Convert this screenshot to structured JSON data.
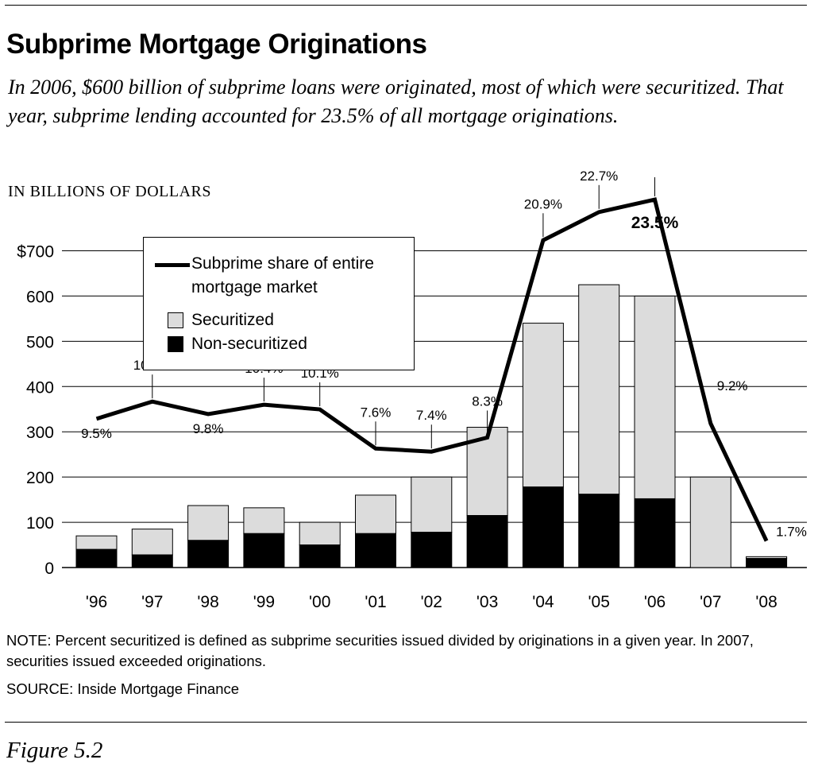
{
  "header": {
    "title": "Subprime Mortgage Originations",
    "subtitle": "In 2006, $600 billion of subprime loans were originated, most of which were securitized. That year, subprime lending accounted for 23.5% of all mortgage originations.",
    "units": "IN BILLIONS OF DOLLARS"
  },
  "chart_data": {
    "type": "bar",
    "stacked": true,
    "categories": [
      "'96",
      "'97",
      "'98",
      "'99",
      "'00",
      "'01",
      "'02",
      "'03",
      "'04",
      "'05",
      "'06",
      "'07",
      "'08"
    ],
    "y_ticks": [
      "$700",
      "600",
      "500",
      "400",
      "300",
      "200",
      "100",
      "0"
    ],
    "ylim": [
      0,
      700
    ],
    "grid": true,
    "legend_placement": "top-left",
    "series": [
      {
        "name": "Non-securitized",
        "kind": "bar",
        "color": "#000000",
        "values": [
          40,
          28,
          60,
          75,
          50,
          75,
          78,
          115,
          178,
          162,
          152,
          0,
          20
        ]
      },
      {
        "name": "Securitized",
        "kind": "bar",
        "color": "#dcdcdc",
        "values": [
          30,
          57,
          77,
          57,
          50,
          85,
          122,
          195,
          362,
          463,
          448,
          200,
          4
        ]
      },
      {
        "name": "Subprime share of entire mortgage market",
        "kind": "line",
        "color": "#000000",
        "unit": "%",
        "values": [
          9.5,
          10.6,
          9.8,
          10.4,
          10.1,
          7.6,
          7.4,
          8.3,
          20.9,
          22.7,
          23.5,
          9.2,
          1.7
        ],
        "labels": [
          "9.5%",
          "10.6%",
          "9.8%",
          "10.4%",
          "10.1%",
          "7.6%",
          "7.4%",
          "8.3%",
          "20.9%",
          "22.7%",
          "23.5%",
          "9.2%",
          "1.7%"
        ]
      }
    ],
    "legend": {
      "line_label_1": "Subprime share of entire",
      "line_label_2": "mortgage market",
      "securitized": "Securitized",
      "non_securitized": "Non-securitized"
    }
  },
  "footer": {
    "note": "NOTE: Percent securitized is defined as subprime securities issued divided by originations in a given year. In 2007, securities issued exceeded originations.",
    "source": "SOURCE: Inside Mortgage Finance",
    "caption": "Figure 5.2"
  }
}
